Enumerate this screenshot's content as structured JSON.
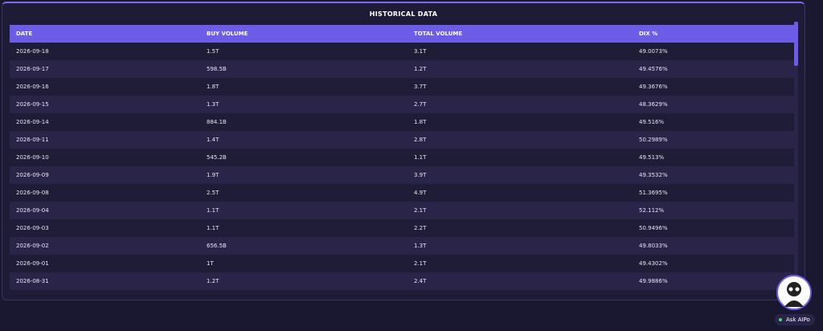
{
  "title": "HISTORICAL DATA",
  "table": {
    "columns": [
      "DATE",
      "BUY VOLUME",
      "TOTAL VOLUME",
      "DIX %"
    ],
    "rows": [
      [
        "2026-09-18",
        "1.5T",
        "3.1T",
        "49.0073%"
      ],
      [
        "2026-09-17",
        "598.5B",
        "1.2T",
        "49.4576%"
      ],
      [
        "2026-09-16",
        "1.8T",
        "3.7T",
        "49.3676%"
      ],
      [
        "2026-09-15",
        "1.3T",
        "2.7T",
        "48.3629%"
      ],
      [
        "2026-09-14",
        "884.1B",
        "1.8T",
        "49.516%"
      ],
      [
        "2026-09-11",
        "1.4T",
        "2.8T",
        "50.2989%"
      ],
      [
        "2026-09-10",
        "545.2B",
        "1.1T",
        "49.513%"
      ],
      [
        "2026-09-09",
        "1.9T",
        "3.9T",
        "49.3532%"
      ],
      [
        "2026-09-08",
        "2.5T",
        "4.9T",
        "51.3695%"
      ],
      [
        "2026-09-04",
        "1.1T",
        "2.1T",
        "52.112%"
      ],
      [
        "2026-09-03",
        "1.1T",
        "2.2T",
        "50.9496%"
      ],
      [
        "2026-09-02",
        "656.5B",
        "1.3T",
        "49.8033%"
      ],
      [
        "2026-09-01",
        "1T",
        "2.1T",
        "49.4302%"
      ],
      [
        "2026-08-31",
        "1.2T",
        "2.4T",
        "49.9886%"
      ]
    ]
  },
  "assistant": {
    "label": "Ask AIPo"
  }
}
